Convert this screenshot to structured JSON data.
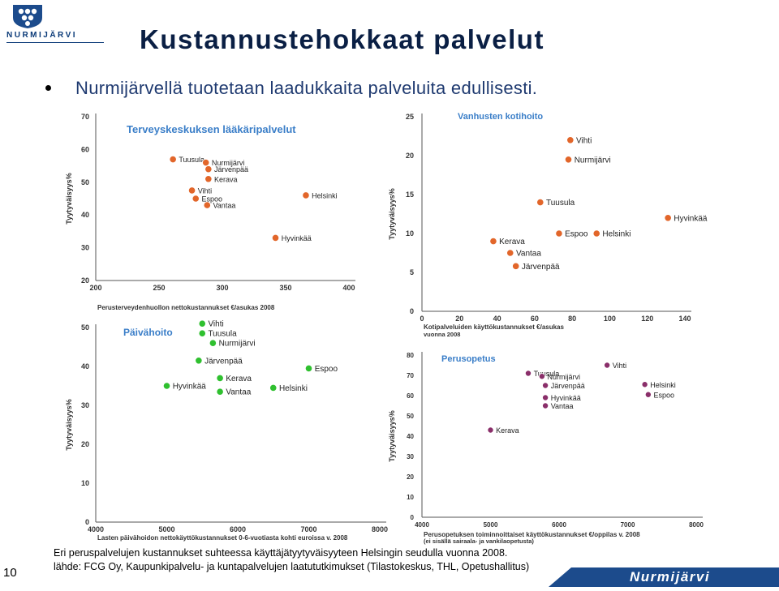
{
  "header": {
    "logo_text": "NURMIJÄRVI",
    "title": "Kustannustehokkaat palvelut",
    "bullet": "Nurmijärvellä tuotetaan laadukkaita palveluita edullisesti."
  },
  "colors": {
    "orange": "#e2662a",
    "green": "#2fc02f",
    "purple": "#8a2f6a",
    "title": "#0a1f44",
    "brand": "#1c4b8c",
    "chart_title": "#3a7ec8"
  },
  "footer": {
    "line1": "Eri peruspalvelujen kustannukset suhteessa käyttäjätyytyväisyyteen Helsingin seudulla vuonna 2008.",
    "line2": "lähde: FCG Oy, Kaupunkipalvelu- ja kuntapalvelujen laatututkimukset (Tilastokeskus, THL, Opetushallitus)",
    "page_number": "10",
    "brand": "Nurmijärvi"
  },
  "chart_data": [
    {
      "id": "c1",
      "type": "scatter",
      "color": "orange",
      "title": "Terveyskeskuksen lääkäripalvelut",
      "xlabel": "Perusterveydenhuollon nettokustannukset €/asukas 2008",
      "xlabel2": "",
      "ylabel": "Tyytyväisyys%",
      "xlim": [
        200,
        400
      ],
      "ylim": [
        20,
        70
      ],
      "xticks": [
        200,
        250,
        300,
        350,
        400
      ],
      "yticks": [
        20,
        30,
        40,
        50,
        60,
        70
      ],
      "points": [
        {
          "label": "Tuusula",
          "x": 261,
          "y": 57
        },
        {
          "label": "Nurmijärvi",
          "x": 287,
          "y": 56
        },
        {
          "label": "Järvenpää",
          "x": 289,
          "y": 54
        },
        {
          "label": "Kerava",
          "x": 289,
          "y": 51
        },
        {
          "label": "Vihti",
          "x": 276,
          "y": 47.5
        },
        {
          "label": "Espoo",
          "x": 279,
          "y": 45
        },
        {
          "label": "Vantaa",
          "x": 288,
          "y": 43
        },
        {
          "label": "Helsinki",
          "x": 366,
          "y": 46
        },
        {
          "label": "Hyvinkää",
          "x": 342,
          "y": 33
        }
      ]
    },
    {
      "id": "c2",
      "type": "scatter",
      "color": "orange",
      "title": "Vanhusten kotihoito",
      "xlabel": "Kotipalveluiden käyttökustannukset €/asukas",
      "xlabel2": "vuonna 2008",
      "ylabel": "Tyytyväisyys%",
      "xlim": [
        0,
        140
      ],
      "ylim": [
        0,
        25
      ],
      "xticks": [
        0,
        20,
        40,
        60,
        80,
        100,
        120,
        140
      ],
      "yticks": [
        0,
        5,
        10,
        15,
        20,
        25
      ],
      "points": [
        {
          "label": "Vihti",
          "x": 79,
          "y": 22
        },
        {
          "label": "Nurmijärvi",
          "x": 78,
          "y": 19.5
        },
        {
          "label": "Tuusula",
          "x": 63,
          "y": 14
        },
        {
          "label": "Hyvinkää",
          "x": 131,
          "y": 12
        },
        {
          "label": "Espoo",
          "x": 73,
          "y": 10
        },
        {
          "label": "Helsinki",
          "x": 93,
          "y": 10
        },
        {
          "label": "Kerava",
          "x": 38,
          "y": 9
        },
        {
          "label": "Vantaa",
          "x": 47,
          "y": 7.5
        },
        {
          "label": "Järvenpää",
          "x": 50,
          "y": 5.8
        }
      ]
    },
    {
      "id": "c3",
      "type": "scatter",
      "color": "green",
      "title": "Päivähoito",
      "xlabel": "Lasten päivähoidon nettokäyttökustannukset 0-6-vuotiasta kohti euroissa v. 2008",
      "xlabel2": "",
      "ylabel": "Tyytyväisyys%",
      "xlim": [
        4000,
        8000
      ],
      "ylim": [
        0,
        50
      ],
      "xticks": [
        4000,
        5000,
        6000,
        7000,
        8000
      ],
      "yticks": [
        0,
        10,
        20,
        30,
        40,
        50
      ],
      "points": [
        {
          "label": "Vihti",
          "x": 5500,
          "y": 51
        },
        {
          "label": "Tuusula",
          "x": 5500,
          "y": 48.5
        },
        {
          "label": "Nurmijärvi",
          "x": 5650,
          "y": 46
        },
        {
          "label": "Järvenpää",
          "x": 5450,
          "y": 41.5
        },
        {
          "label": "Espoo",
          "x": 7000,
          "y": 39.5
        },
        {
          "label": "Kerava",
          "x": 5750,
          "y": 37
        },
        {
          "label": "Hyvinkää",
          "x": 5000,
          "y": 35
        },
        {
          "label": "Vantaa",
          "x": 5750,
          "y": 33.5
        },
        {
          "label": "Helsinki",
          "x": 6500,
          "y": 34.5
        }
      ]
    },
    {
      "id": "c4",
      "type": "scatter",
      "color": "purple",
      "title": "Perusopetus",
      "xlabel": "Perusopetuksen toiminnoittaiset käyttökustannukset €/oppilas v. 2008",
      "xlabel2": "(ei sisällä sairaala- ja vankilaopetusta)",
      "ylabel": "Tyytyväisyys%",
      "xlim": [
        4000,
        8000
      ],
      "ylim": [
        0,
        80
      ],
      "xticks": [
        4000,
        5000,
        6000,
        7000,
        8000
      ],
      "yticks": [
        0,
        10,
        20,
        30,
        40,
        50,
        60,
        70,
        80
      ],
      "points": [
        {
          "label": "Vihti",
          "x": 6700,
          "y": 75
        },
        {
          "label": "Tuusula",
          "x": 5550,
          "y": 71
        },
        {
          "label": "Nurmijärvi",
          "x": 5750,
          "y": 69.5
        },
        {
          "label": "Järvenpää",
          "x": 5800,
          "y": 65
        },
        {
          "label": "Helsinki",
          "x": 7250,
          "y": 65.5
        },
        {
          "label": "Espoo",
          "x": 7300,
          "y": 60.5
        },
        {
          "label": "Hyvinkää",
          "x": 5800,
          "y": 59
        },
        {
          "label": "Vantaa",
          "x": 5800,
          "y": 55
        },
        {
          "label": "Kerava",
          "x": 5000,
          "y": 43
        }
      ]
    }
  ]
}
